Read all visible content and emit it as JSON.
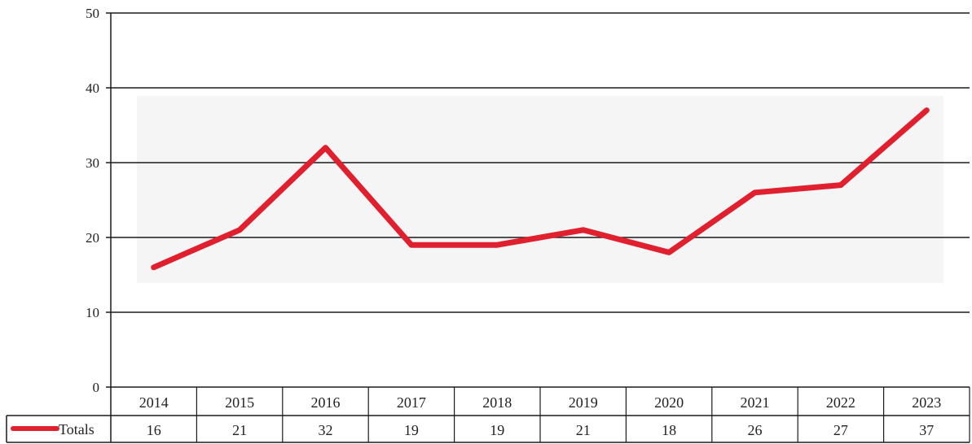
{
  "chart_data": {
    "type": "line",
    "title": "",
    "xlabel": "",
    "ylabel": "",
    "categories": [
      "2014",
      "2015",
      "2016",
      "2017",
      "2018",
      "2019",
      "2020",
      "2021",
      "2022",
      "2023"
    ],
    "series": [
      {
        "name": "Totals",
        "values": [
          16,
          21,
          32,
          19,
          19,
          21,
          18,
          26,
          27,
          37
        ],
        "color": "#e0202e"
      }
    ],
    "ylim": [
      0,
      50
    ],
    "yticks": [
      0,
      10,
      20,
      30,
      40,
      50
    ],
    "grid": true,
    "legend": "data-table-left",
    "data_table": true
  }
}
